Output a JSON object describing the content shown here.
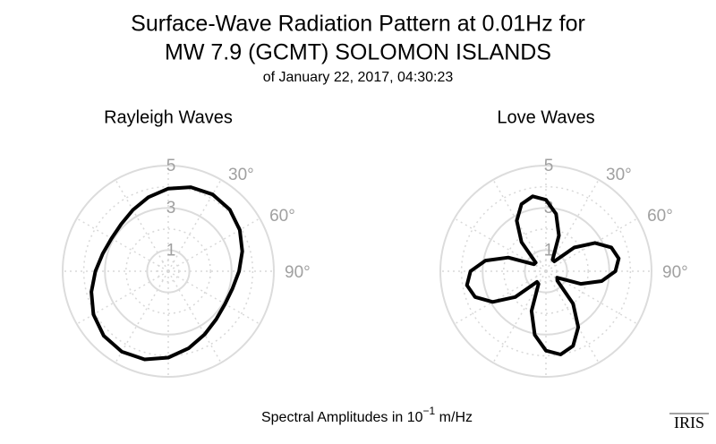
{
  "figure": {
    "title": [
      "Surface-Wave Radiation Pattern at 0.01Hz for",
      "MW 7.9 (GCMT) SOLOMON ISLANDS"
    ],
    "subtitle": "of January 22, 2017, 04:30:23",
    "footer": {
      "prefix": "Spectral Amplitudes in 10",
      "exponent": "−1",
      "suffix": " m/Hz"
    },
    "logo": "IRIS"
  },
  "chart_data": [
    {
      "type": "polar",
      "title": "Rayleigh Waves",
      "color": "#000000",
      "theta": [
        0,
        15,
        30,
        45,
        60,
        75,
        90,
        105,
        120,
        135,
        150,
        165,
        180,
        195,
        210,
        225,
        240,
        255,
        270,
        285,
        300,
        315,
        330,
        345
      ],
      "values": [
        3.91,
        4.12,
        4.2,
        4.12,
        3.91,
        3.63,
        3.35,
        3.15,
        3.1,
        3.21,
        3.45,
        3.77,
        4.09,
        4.32,
        4.4,
        4.32,
        4.09,
        3.77,
        3.45,
        3.21,
        3.1,
        3.15,
        3.35,
        3.63
      ],
      "rlim": [
        0,
        5
      ],
      "rticks": [
        1,
        3,
        5
      ],
      "thetaticks": [
        {
          "value": 30,
          "label": "30°"
        },
        {
          "value": 60,
          "label": "60°"
        },
        {
          "value": 90,
          "label": "90°"
        }
      ]
    },
    {
      "type": "polar",
      "title": "Love Waves",
      "color": "#000000",
      "theta": [
        0,
        10,
        20,
        30,
        40,
        50,
        60,
        70,
        80,
        90,
        100,
        110,
        120,
        130,
        140,
        150,
        160,
        170,
        180,
        190,
        200,
        210,
        220,
        230,
        240,
        250,
        260,
        270,
        280,
        290,
        300,
        310,
        320,
        330,
        340,
        350
      ],
      "values": [
        3.38,
        2.76,
        1.8,
        0.63,
        0.61,
        1.75,
        2.68,
        3.29,
        3.5,
        3.29,
        2.68,
        1.75,
        0.61,
        0.7,
        2.0,
        3.06,
        3.76,
        4.0,
        3.76,
        3.06,
        2.0,
        0.7,
        0.66,
        1.9,
        2.91,
        3.57,
        3.8,
        3.57,
        2.91,
        1.9,
        0.66,
        0.63,
        1.8,
        2.76,
        3.38,
        3.6
      ],
      "rlim": [
        0,
        5
      ],
      "rticks": [
        1,
        3,
        5
      ],
      "thetaticks": [
        {
          "value": 30,
          "label": "30°"
        },
        {
          "value": 60,
          "label": "60°"
        },
        {
          "value": 90,
          "label": "90°"
        }
      ]
    }
  ]
}
